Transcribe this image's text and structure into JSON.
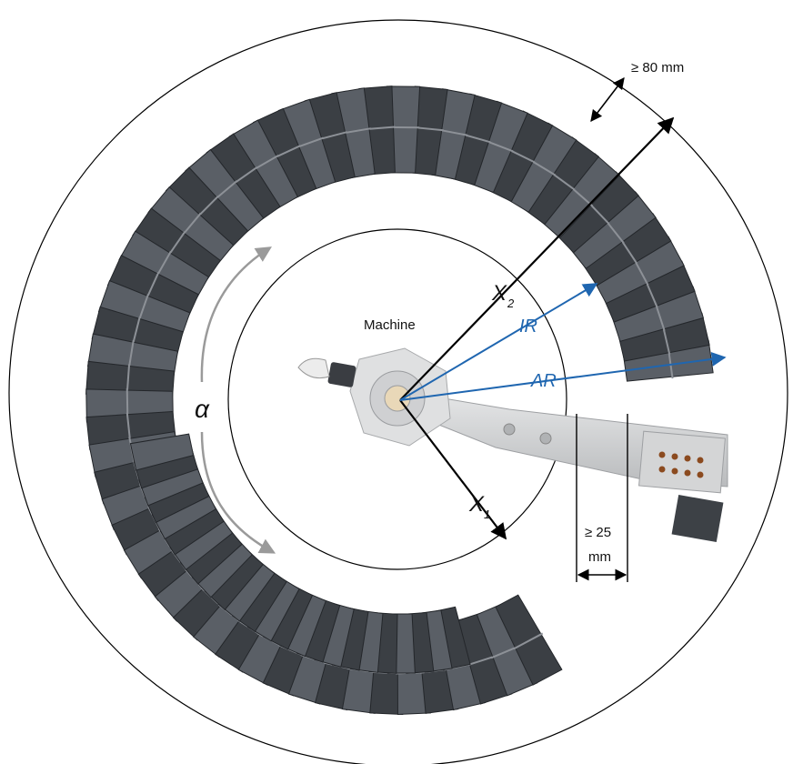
{
  "labels": {
    "machine": "Machine",
    "alpha": "α",
    "ir": "IR",
    "ar": "AR",
    "x1_main": "X",
    "x1_sub": "1",
    "x2_main": "X",
    "x2_sub": "2",
    "clearance_outer": "≥ 80 mm",
    "clearance_side_value": "≥ 25",
    "clearance_side_unit": "mm"
  },
  "colors": {
    "accent_blue": "#1f66b0",
    "chain_dark": "#3b3f44",
    "chain_mid": "#5a5f66",
    "bracket_metal": "#c9cbcd",
    "alpha_arrow": "#9a9a9a"
  },
  "icons": {
    "chain": "energy-chain-segment",
    "arm": "rotating-arm-bracket",
    "hub": "center-hub"
  }
}
